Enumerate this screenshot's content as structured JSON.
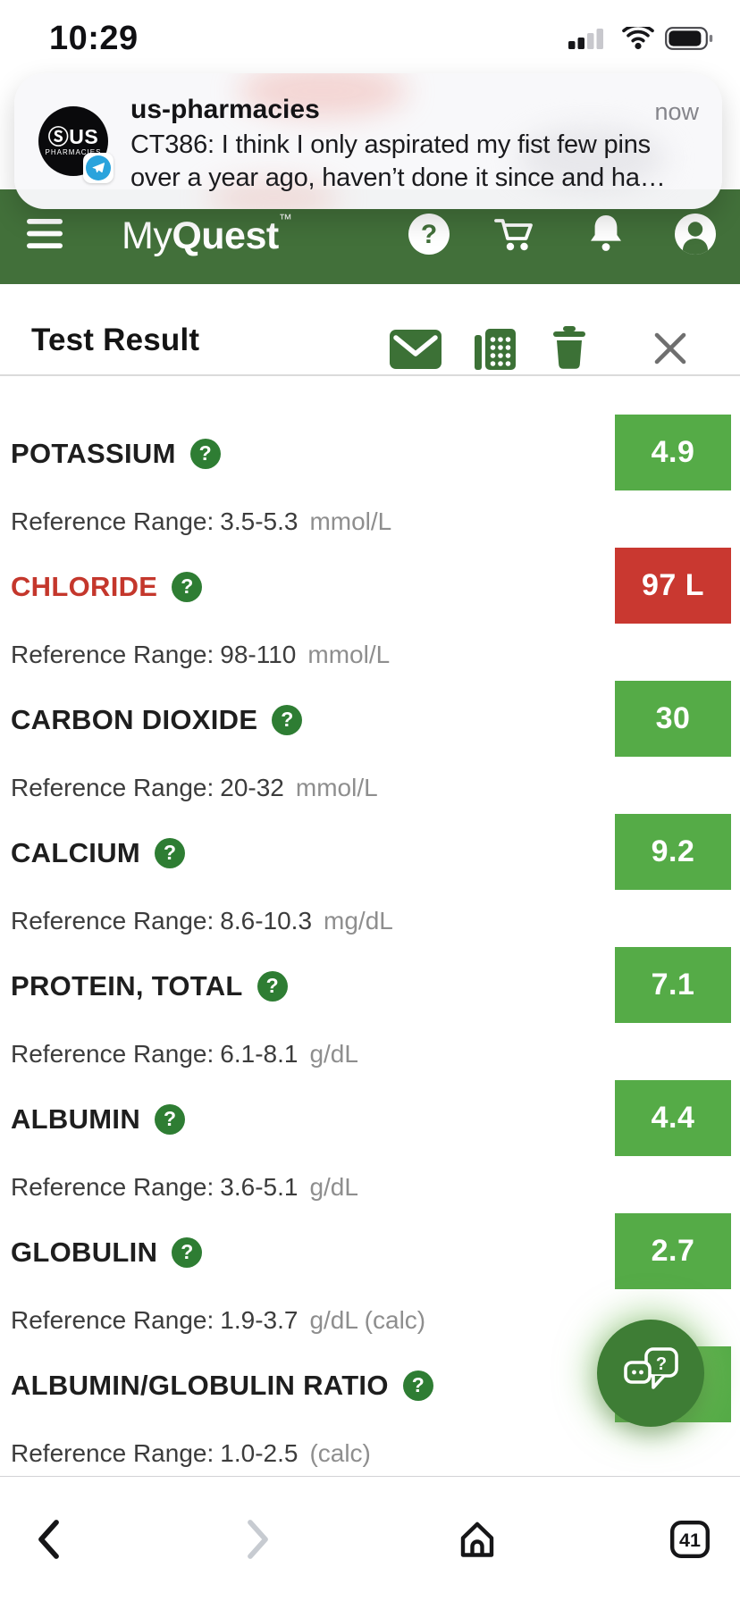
{
  "status_bar": {
    "time": "10:29",
    "icons": [
      "cellular-signal-icon",
      "wifi-icon",
      "battery-icon"
    ]
  },
  "notification": {
    "app_name": "us-pharmacies",
    "timestamp": "now",
    "message_line1": "CT386: I think I only aspirated my fist few pins",
    "message_line2": "over a year ago, haven’t done it since and ha…",
    "avatar_line1": "ⓈUS",
    "avatar_line2": "PHARMACIES",
    "badge_icon": "telegram-icon"
  },
  "app_header": {
    "logo_prefix": "My",
    "logo_bold": "Quest",
    "logo_tm": "™",
    "icons": [
      "help-icon",
      "cart-icon",
      "bell-icon",
      "account-icon"
    ]
  },
  "toolbar": {
    "title": "Test Result",
    "icons": [
      "mail-icon",
      "fax-icon",
      "trash-icon",
      "close-icon"
    ]
  },
  "labels": {
    "reference_range": "Reference Range:"
  },
  "results": [
    {
      "name": "POTASSIUM",
      "range": "3.5-5.3",
      "unit": "mmol/L",
      "value": "4.9",
      "status": "normal"
    },
    {
      "name": "CHLORIDE",
      "range": "98-110",
      "unit": "mmol/L",
      "value": "97 L",
      "status": "low"
    },
    {
      "name": "CARBON DIOXIDE",
      "range": "20-32",
      "unit": "mmol/L",
      "value": "30",
      "status": "normal"
    },
    {
      "name": "CALCIUM",
      "range": "8.6-10.3",
      "unit": "mg/dL",
      "value": "9.2",
      "status": "normal"
    },
    {
      "name": "PROTEIN, TOTAL",
      "range": "6.1-8.1",
      "unit": "g/dL",
      "value": "7.1",
      "status": "normal"
    },
    {
      "name": "ALBUMIN",
      "range": "3.6-5.1",
      "unit": "g/dL",
      "value": "4.4",
      "status": "normal"
    },
    {
      "name": "GLOBULIN",
      "range": "1.9-3.7",
      "unit": "g/dL (calc)",
      "value": "2.7",
      "status": "normal"
    },
    {
      "name": "ALBUMIN/GLOBULIN RATIO",
      "range": "1.0-2.5",
      "unit": "(calc)",
      "value": "",
      "status": "normal"
    }
  ],
  "fab": {
    "icon": "chat-question-icon"
  },
  "bottom_nav": {
    "back": "back-chevron-icon",
    "forward": "forward-chevron-icon",
    "home": "home-icon",
    "tabs_count": "41"
  },
  "colors": {
    "header_green": "#42703A",
    "normal_green": "#55AB47",
    "abnormal_red": "#C93830",
    "abnormal_label_red": "#C4372C",
    "help_green": "#2E7D33",
    "fab_green": "#3E7D35"
  }
}
